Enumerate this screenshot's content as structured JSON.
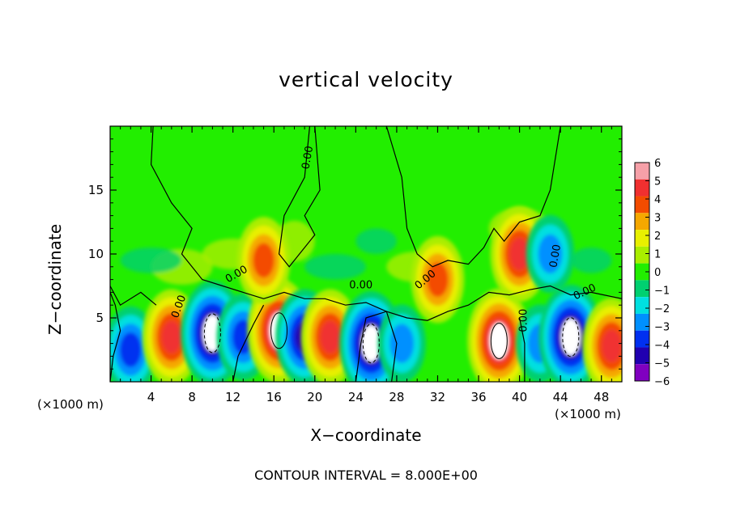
{
  "chart_data": {
    "type": "heatmap",
    "title": "vertical velocity",
    "xlabel": "X−coordinate",
    "ylabel": "Z−coordinate",
    "x_unit": "(×1000 m)",
    "x_ticks": [
      4,
      8,
      12,
      16,
      20,
      24,
      28,
      32,
      36,
      40,
      44,
      48
    ],
    "y_ticks": [
      5,
      10,
      15
    ],
    "xlim": [
      0,
      50
    ],
    "ylim": [
      0,
      20
    ],
    "colorbar": {
      "ticks": [
        6,
        5,
        4,
        3,
        2,
        1,
        0,
        -1,
        -2,
        -3,
        -4,
        -5,
        -6
      ],
      "colors": [
        "#f6a0a8",
        "#f03030",
        "#f34c00",
        "#f5a800",
        "#e8f000",
        "#aaee00",
        "#22ee00",
        "#00d070",
        "#00e0e0",
        "#0090ff",
        "#0030f0",
        "#2000b0",
        "#8000c0"
      ]
    },
    "contour_labels": [
      "0.00"
    ],
    "contour_interval_text": "CONTOUR INTERVAL = 8.000E+00",
    "features": [
      {
        "x": 2.0,
        "z": 2.5,
        "w": -4
      },
      {
        "x": 6.0,
        "z": 3.5,
        "w": 5
      },
      {
        "x": 10.0,
        "z": 3.8,
        "w": -6
      },
      {
        "x": 13.0,
        "z": 3.5,
        "w": -4
      },
      {
        "x": 16.5,
        "z": 4.0,
        "w": 6
      },
      {
        "x": 19.0,
        "z": 3.5,
        "w": -5
      },
      {
        "x": 21.5,
        "z": 3.5,
        "w": 5
      },
      {
        "x": 25.5,
        "z": 3.0,
        "w": -6
      },
      {
        "x": 28.5,
        "z": 3.0,
        "w": -3
      },
      {
        "x": 38.0,
        "z": 3.2,
        "w": 6
      },
      {
        "x": 42.0,
        "z": 3.0,
        "w": -3
      },
      {
        "x": 45.0,
        "z": 3.5,
        "w": -6
      },
      {
        "x": 49.0,
        "z": 2.8,
        "w": 5
      },
      {
        "x": 15.0,
        "z": 9.5,
        "w": 4
      },
      {
        "x": 32.0,
        "z": 8.0,
        "w": 4
      },
      {
        "x": 40.0,
        "z": 10.0,
        "w": 5
      },
      {
        "x": 43.0,
        "z": 10.0,
        "w": -3
      }
    ]
  }
}
